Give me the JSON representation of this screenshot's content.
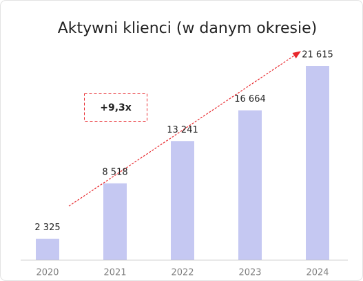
{
  "chart_data": {
    "type": "bar",
    "title": "Aktywni klienci (w danym okresie)",
    "categories": [
      "2020",
      "2021",
      "2022",
      "2023",
      "2024"
    ],
    "values": [
      2325,
      8518,
      13241,
      16664,
      21615
    ],
    "value_labels": [
      "2 325",
      "8 518",
      "13 241",
      "16 664",
      "21 615"
    ],
    "color": "#c5c8f2",
    "annotation": "+9,3x"
  }
}
